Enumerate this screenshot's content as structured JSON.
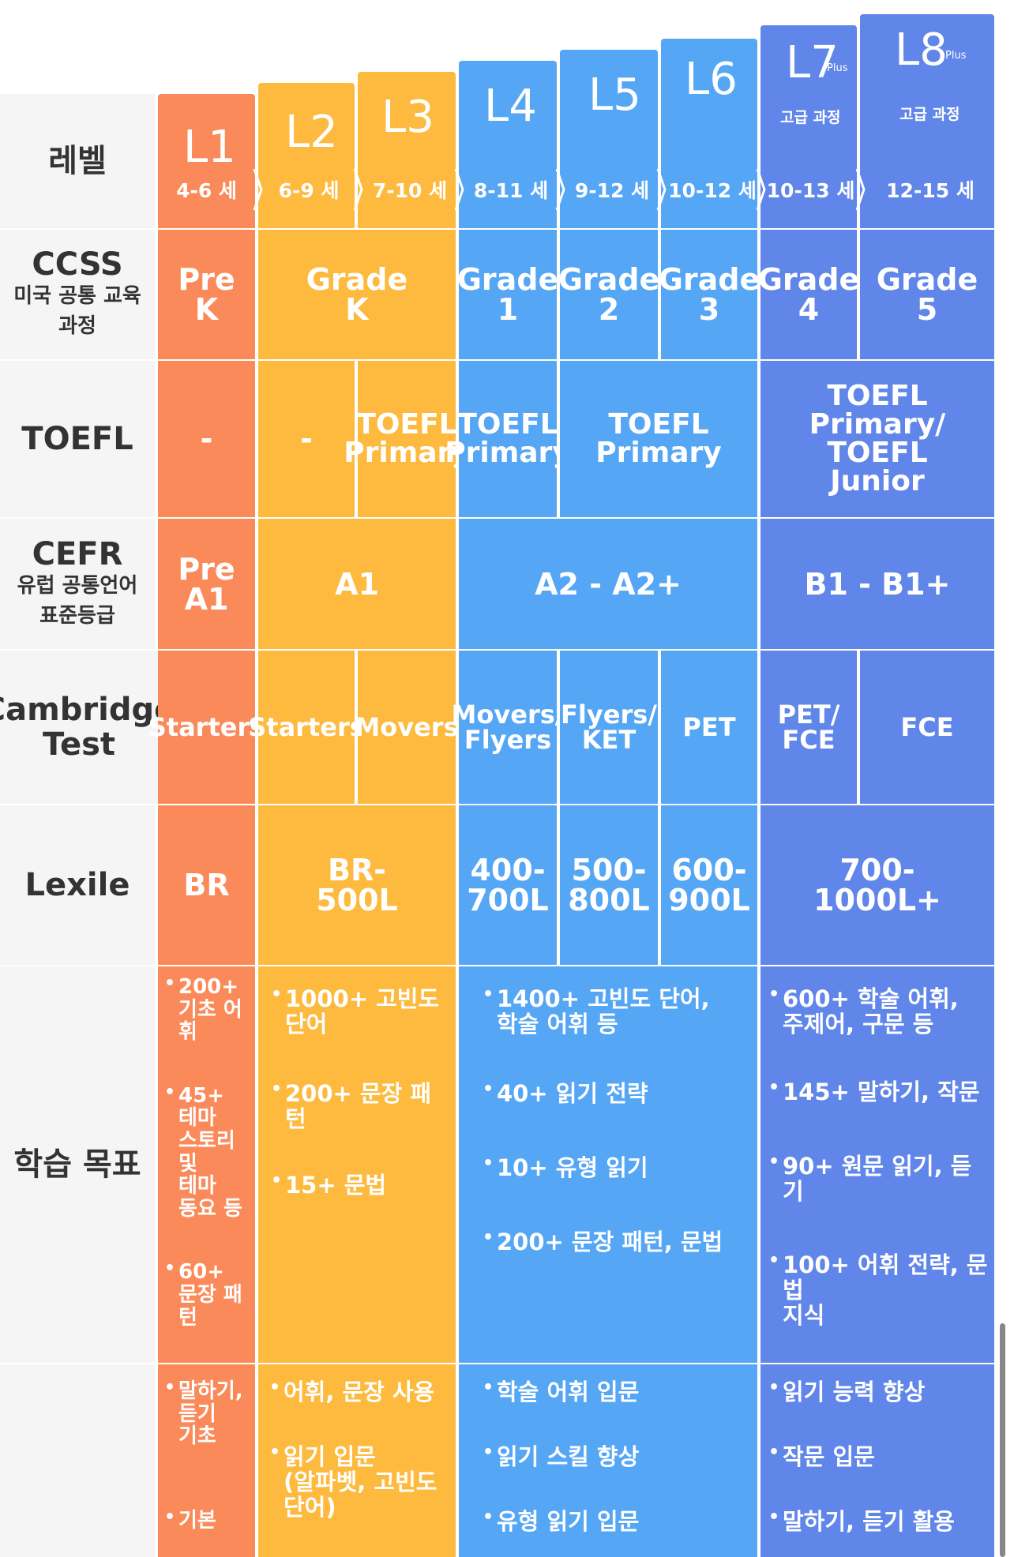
{
  "colors": {
    "coral": "#fb8a5a",
    "yellow": "#fdba3e",
    "blue": "#55a6f4",
    "indigo": "#5f86e8",
    "row_head_bg": "#f5f5f5",
    "grid_gap": "#ffffff"
  },
  "row_heads": {
    "level": {
      "main": "레벨"
    },
    "ccss": {
      "main": "CCSS",
      "sub1": "미국 공통 교육",
      "sub2": "과정"
    },
    "toefl": {
      "main": "TOEFL"
    },
    "cefr": {
      "main": "CEFR",
      "sub1": "유럽 공통언어",
      "sub2": "표준등급"
    },
    "cambridge": {
      "main1": "Cambridge",
      "main2": "Test"
    },
    "lexile": {
      "main": "Lexile"
    },
    "goals": {
      "main": "학습 목표"
    }
  },
  "levels": [
    {
      "label": "L1",
      "age": "4-6 세"
    },
    {
      "label": "L2",
      "age": "6-9 세"
    },
    {
      "label": "L3",
      "age": "7-10 세"
    },
    {
      "label": "L4",
      "age": "8-11 세"
    },
    {
      "label": "L5",
      "age": "9-12 세"
    },
    {
      "label": "L6",
      "age": "10-12 세"
    },
    {
      "label": "L7",
      "plus": "Plus",
      "course": "고급 과정",
      "age": "10-13 세"
    },
    {
      "label": "L8",
      "plus": "Plus",
      "course": "고급 과정",
      "age": "12-15 세"
    }
  ],
  "ccss": [
    "Pre\nK",
    "Grade\nK",
    "Grade\n1",
    "Grade\n2",
    "Grade\n3",
    "Grade\n4",
    "Grade\n5"
  ],
  "toefl": [
    "-",
    "-",
    "TOEFL\nPrimary",
    "TOEFL\nPrimary",
    "TOEFL\nPrimary",
    "TOEFL\nPrimary/\nTOEFL\nJunior"
  ],
  "cefr": [
    "Pre\nA1",
    "A1",
    "A2 - A2+",
    "B1 - B1+"
  ],
  "cambridge": [
    "Starters",
    "Starters",
    "Movers",
    "Movers/\nFlyers",
    "Flyers/\nKET",
    "PET",
    "PET/\nFCE",
    "FCE"
  ],
  "lexile": [
    "BR",
    "BR-\n500L",
    "400-\n700L",
    "500-\n800L",
    "600-\n900L",
    "700-\n1000L+"
  ],
  "goals": {
    "l1": [
      "200+\n기초 어\n휘",
      "45+\n테마\n스토리\n및\n테마\n동요 등",
      "60+\n문장 패\n턴"
    ],
    "l23": [
      "1000+ 고빈도\n단어",
      "200+ 문장 패\n턴",
      "15+ 문법"
    ],
    "l456": [
      "1400+ 고빈도 단어,\n학술 어휘 등",
      "40+ 읽기 전략",
      "10+ 유형 읽기",
      "200+ 문장 패턴, 문법"
    ],
    "l78": [
      "600+ 학술 어휘,\n주제어, 구문 등",
      "145+ 말하기, 작문",
      "90+ 원문 읽기, 듣기",
      "100+ 어휘 전략, 문법\n지식"
    ]
  },
  "skills": {
    "l1": [
      "말하기,\n듣기\n기초",
      "기본"
    ],
    "l23": [
      "어휘, 문장 사용",
      "읽기 입문\n(알파벳, 고빈도\n단어)"
    ],
    "l456": [
      "학술 어휘 입문",
      "읽기 스킬 향상",
      "유형 읽기 입문"
    ],
    "l78": [
      "읽기 능력 향상",
      "작문 입문",
      "말하기, 듣기 활용"
    ]
  }
}
